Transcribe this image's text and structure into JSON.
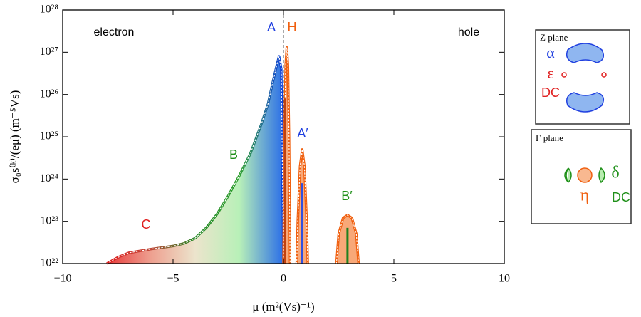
{
  "chart_data": {
    "type": "line",
    "ylabel": "σ₀s⁽ᵏ⁾/(eμ) (m⁻⁵Vs)",
    "xlabel": "μ (m²(Vs)⁻¹)",
    "xlim": [
      -10,
      10
    ],
    "xticks": [
      {
        "value": -10,
        "label": "−10"
      },
      {
        "value": -5,
        "label": "−5"
      },
      0,
      5,
      10
    ],
    "ylim": [
      1e+22,
      1e+28
    ],
    "ylog": true,
    "yticks": [
      {
        "value": 1e+22,
        "label": "10²²"
      },
      {
        "value": 1e+23,
        "label": "10²³"
      },
      {
        "value": 1e+24,
        "label": "10²⁴"
      },
      {
        "value": 1e+25,
        "label": "10²⁵"
      },
      {
        "value": 1e+26,
        "label": "10²⁶"
      },
      {
        "value": 1e+27,
        "label": "10²⁷"
      },
      {
        "value": 1e+28,
        "label": "10²⁸"
      }
    ],
    "series": [
      {
        "x": [
          -8,
          -7.5,
          -7,
          -6,
          -5,
          -4.5,
          -4,
          -3.5,
          -3,
          -2.5,
          -2,
          -1.5,
          -1,
          -0.7,
          -0.5,
          -0.3,
          -0.2,
          -0.1,
          0
        ],
        "values": [
          1e+22,
          1.4e+22,
          1.8e+22,
          2.2e+22,
          2.6e+22,
          3e+22,
          4e+22,
          7e+22,
          1.5e+23,
          4e+23,
          1.2e+24,
          4e+24,
          2e+25,
          6e+25,
          1.8e+26,
          5e+26,
          8e+26,
          4e+26,
          1e+22
        ],
        "fill_colors": [
          "#e83a3a",
          "#eea090",
          "#ece4cc",
          "#b8f0b8",
          "#2a6ee8"
        ],
        "line_colors": [
          "#e02020",
          "#c04838",
          "#2a8a2a",
          "#30a030",
          "#1040e0"
        ]
      },
      {
        "x": [
          0,
          0.05,
          0.1,
          0.15,
          0.2,
          0.25,
          0.3
        ],
        "values": [
          1e+22,
          1e+25,
          5e+26,
          1.3e+27,
          5e+26,
          1e+25,
          1e+22
        ],
        "color": "#f06010",
        "fill": "#f8a878"
      },
      {
        "x": [
          0.6,
          0.65,
          0.75,
          0.85,
          0.95,
          1.05,
          1.1
        ],
        "values": [
          1e+22,
          1e+23,
          2e+24,
          5e+24,
          2e+24,
          1e+23,
          1e+22
        ],
        "color": "#f06010",
        "fill": "#f8a878"
      },
      {
        "x": [
          2.4,
          2.5,
          2.7,
          2.9,
          3.1,
          3.3,
          3.4
        ],
        "values": [
          1e+22,
          5e+22,
          1.2e+23,
          1.4e+23,
          1.2e+23,
          5e+22,
          1e+22
        ],
        "color": "#f06010",
        "fill": "#f8a878"
      }
    ],
    "stems": [
      {
        "x": 0.07,
        "value": 8e+25,
        "color": "#c04010"
      },
      {
        "x": 0.85,
        "value": 8e+23,
        "color": "#3050e0"
      },
      {
        "x": 2.9,
        "value": 7e+22,
        "color": "#208020"
      }
    ],
    "annotations": [
      {
        "text": "electron",
        "color": "#000000"
      },
      {
        "text": "hole",
        "color": "#000000"
      },
      {
        "text": "A",
        "color": "#2040e0"
      },
      {
        "text": "H",
        "color": "#f06010"
      },
      {
        "text": "A′",
        "color": "#2040e0"
      },
      {
        "text": "B",
        "color": "#20901a"
      },
      {
        "text": "C",
        "color": "#e02020"
      },
      {
        "text": "B′",
        "color": "#20901a"
      }
    ]
  },
  "insets": [
    {
      "title": "Z plane",
      "labels": [
        "α",
        "ε",
        "DC"
      ]
    },
    {
      "title": "Γ plane",
      "labels": [
        "δ",
        "η",
        "DC"
      ]
    }
  ]
}
